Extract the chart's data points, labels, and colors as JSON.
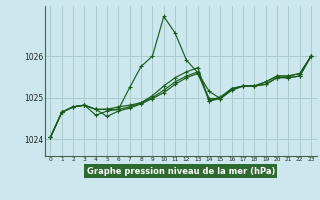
{
  "xlabel": "Graphe pression niveau de la mer (hPa)",
  "background_color": "#cce8ee",
  "grid_color": "#aacccc",
  "line_color": "#1a5c1a",
  "xlabel_bg": "#2e6b2e",
  "xlabel_color": "#ffffff",
  "xlim": [
    -0.5,
    23.5
  ],
  "ylim": [
    1023.6,
    1027.2
  ],
  "yticks": [
    1024,
    1025,
    1026
  ],
  "x_ticks": [
    0,
    1,
    2,
    3,
    4,
    5,
    6,
    7,
    8,
    9,
    10,
    11,
    12,
    13,
    14,
    15,
    16,
    17,
    18,
    19,
    20,
    21,
    22,
    23
  ],
  "series": [
    [
      1024.05,
      1024.65,
      1024.78,
      1024.82,
      1024.72,
      1024.72,
      1024.72,
      1025.25,
      1025.75,
      1026.0,
      1026.95,
      1026.55,
      1025.9,
      1025.6,
      1025.15,
      1024.98,
      1025.22,
      1025.28,
      1025.28,
      1025.38,
      1025.52,
      1025.52,
      1025.58,
      1026.0
    ],
    [
      1024.05,
      1024.65,
      1024.78,
      1024.82,
      1024.72,
      1024.72,
      1024.78,
      1024.82,
      1024.88,
      1025.05,
      1025.28,
      1025.48,
      1025.62,
      1025.72,
      1024.92,
      1025.02,
      1025.22,
      1025.28,
      1025.28,
      1025.38,
      1025.52,
      1025.52,
      1025.58,
      1026.0
    ],
    [
      1024.05,
      1024.65,
      1024.78,
      1024.82,
      1024.58,
      1024.68,
      1024.72,
      1024.78,
      1024.88,
      1025.0,
      1025.18,
      1025.38,
      1025.52,
      1025.62,
      1024.92,
      1024.98,
      1025.18,
      1025.28,
      1025.28,
      1025.32,
      1025.48,
      1025.48,
      1025.52,
      1026.0
    ],
    [
      1024.05,
      1024.65,
      1024.78,
      1024.82,
      1024.72,
      1024.55,
      1024.68,
      1024.75,
      1024.85,
      1024.98,
      1025.12,
      1025.32,
      1025.48,
      1025.58,
      1024.98,
      1024.98,
      1025.18,
      1025.28,
      1025.28,
      1025.32,
      1025.48,
      1025.48,
      1025.52,
      1026.0
    ]
  ]
}
